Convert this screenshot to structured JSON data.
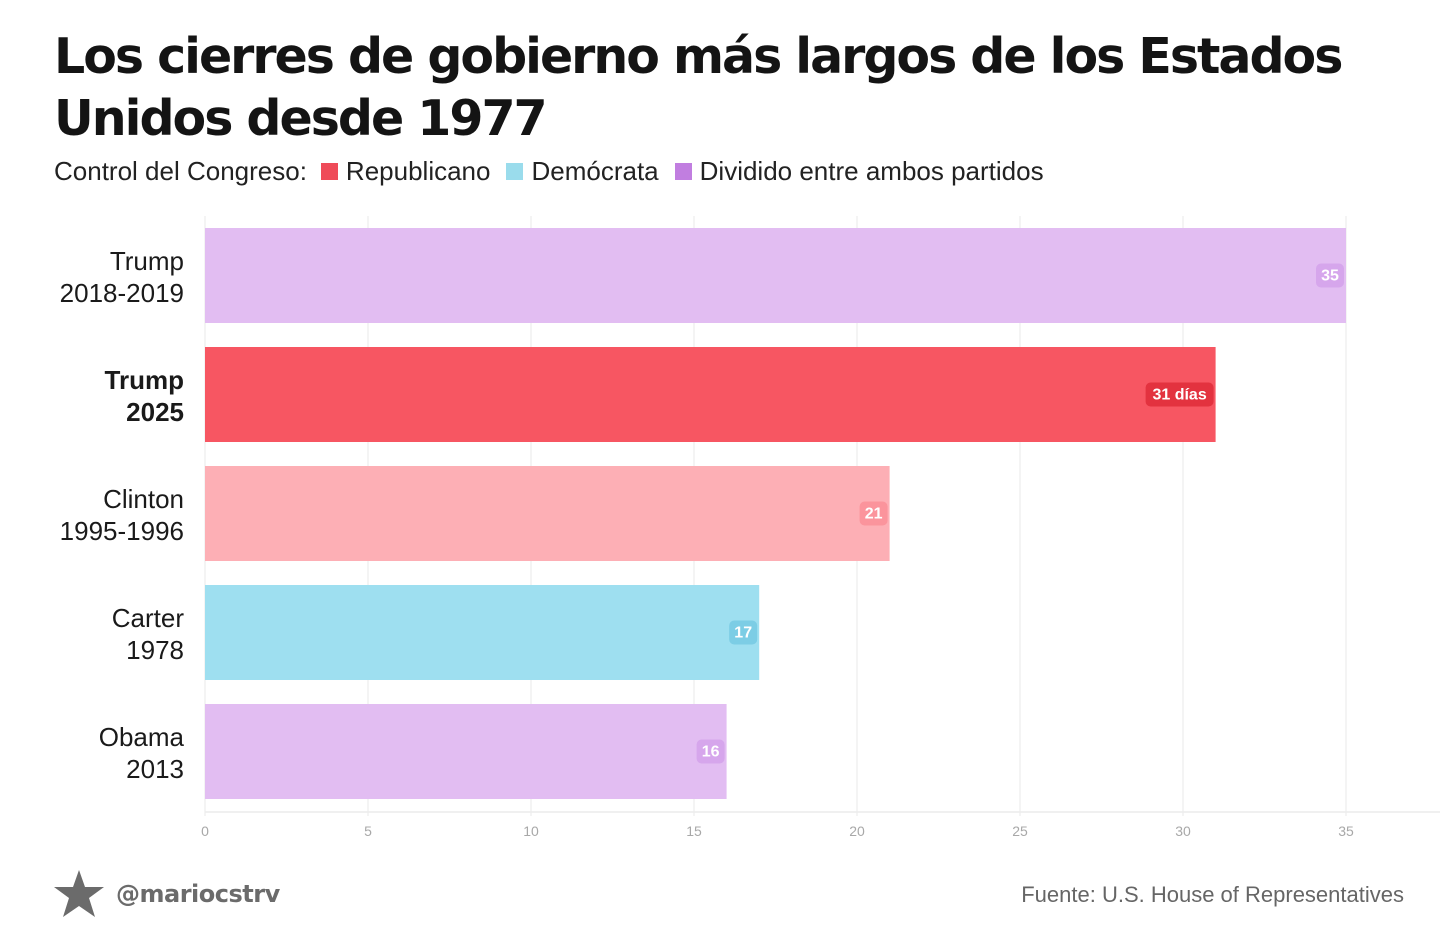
{
  "title": "Los cierres de gobierno más largos de los Estados Unidos desde 1977",
  "legend": {
    "title": "Control del Congreso:",
    "items": [
      {
        "label": "Republicano",
        "color": "#ef4b59"
      },
      {
        "label": "Demócrata",
        "color": "#9adcec"
      },
      {
        "label": "Dividido entre ambos partidos",
        "color": "#c17ee0"
      }
    ]
  },
  "chart_data": {
    "type": "bar",
    "orientation": "horizontal",
    "categories": [
      {
        "name": "Trump",
        "years": "2018-2019",
        "bold": false
      },
      {
        "name": "Trump",
        "years": "2025",
        "bold": true
      },
      {
        "name": "Clinton",
        "years": "1995-1996",
        "bold": false
      },
      {
        "name": "Carter",
        "years": "1978",
        "bold": false
      },
      {
        "name": "Obama",
        "years": "2013",
        "bold": false
      }
    ],
    "values": [
      35,
      31,
      21,
      17,
      16
    ],
    "value_labels": [
      "35",
      "31 días",
      "21",
      "17",
      "16"
    ],
    "bar_colors": [
      "#e2bdf2",
      "#f75662",
      "#fdafb5",
      "#9edff0",
      "#e2bdf2"
    ],
    "label_colors": [
      "#d6a6ec",
      "#e3323f",
      "#fb949c",
      "#7ccde5",
      "#d6a6ec"
    ],
    "xlim": [
      0,
      38
    ],
    "xticks": [
      0,
      5,
      10,
      15,
      20,
      25,
      30,
      35
    ],
    "grid": true,
    "xlabel": "",
    "ylabel": ""
  },
  "footer": {
    "handle": "@mariocstrv",
    "logo_icon": "star-icon",
    "source": "Fuente: U.S. House of Representatives"
  }
}
